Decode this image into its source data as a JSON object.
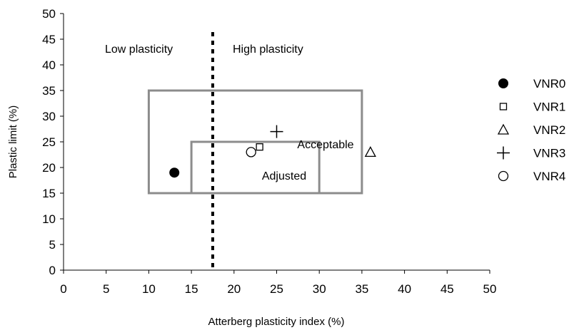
{
  "chart_data": {
    "type": "scatter",
    "xlabel": "Atterberg plasticity index  (%)",
    "ylabel": "Plastic limit (%)",
    "xlim": [
      0,
      50
    ],
    "ylim": [
      0,
      50
    ],
    "x_ticks": [
      0,
      5,
      10,
      15,
      20,
      25,
      30,
      35,
      40,
      45,
      50
    ],
    "y_ticks": [
      0,
      5,
      10,
      15,
      20,
      25,
      30,
      35,
      40,
      45,
      50
    ],
    "grid": false,
    "legend_position": "right",
    "series": [
      {
        "name": "VNR0",
        "marker": "filled-circle",
        "x": 13,
        "y": 19
      },
      {
        "name": "VNR1",
        "marker": "square",
        "x": 23,
        "y": 24
      },
      {
        "name": "VNR2",
        "marker": "triangle",
        "x": 36,
        "y": 23
      },
      {
        "name": "VNR3",
        "marker": "plus",
        "x": 25,
        "y": 27
      },
      {
        "name": "VNR4",
        "marker": "open-circle",
        "x": 22,
        "y": 23
      }
    ],
    "regions": [
      {
        "label": "Acceptable",
        "x0": 10,
        "x1": 35,
        "y0": 15,
        "y1": 35,
        "color": "#8c8c8c"
      },
      {
        "label": "Adjusted",
        "x0": 15,
        "x1": 30,
        "y0": 15,
        "y1": 25,
        "color": "#8c8c8c"
      }
    ],
    "divider": {
      "x": 17.5
    },
    "annotations": {
      "low": "Low plasticity",
      "high": "High plasticity"
    }
  }
}
